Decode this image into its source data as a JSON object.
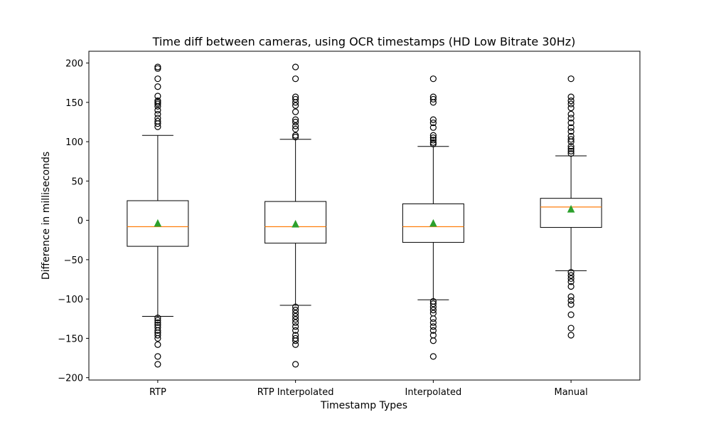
{
  "chart_data": {
    "type": "box",
    "title": "Time diff between cameras, using OCR timestamps (HD Low Bitrate 30Hz)",
    "xlabel": "Timestamp Types",
    "ylabel": "Difference in milliseconds",
    "ylim": [
      -203,
      215
    ],
    "yticks": [
      -200,
      -150,
      -100,
      -50,
      0,
      50,
      100,
      150,
      200
    ],
    "ytick_labels": [
      "−200",
      "−150",
      "−100",
      "−50",
      "0",
      "50",
      "100",
      "150",
      "200"
    ],
    "categories": [
      "RTP",
      "RTP Interpolated",
      "Interpolated",
      "Manual"
    ],
    "grid": false,
    "colors": {
      "box": "#000000",
      "median": "#ff7f0e",
      "mean": "#2ca02c",
      "flier": "#000000"
    },
    "series": [
      {
        "category": "RTP",
        "whisker_low": -122,
        "q1": -33,
        "median": -8,
        "q3": 25,
        "whisker_high": 108,
        "mean": -4,
        "fliers_high": [
          195,
          193,
          180,
          170,
          158,
          152,
          150,
          148,
          145,
          140,
          135,
          130,
          126,
          123,
          119
        ],
        "fliers_low": [
          -124,
          -127,
          -130,
          -133,
          -136,
          -140,
          -143,
          -146,
          -150,
          -158,
          -173,
          -183
        ]
      },
      {
        "category": "RTP Interpolated",
        "whisker_low": -108,
        "q1": -29,
        "median": -8,
        "q3": 24,
        "whisker_high": 103,
        "mean": -5,
        "fliers_high": [
          195,
          180,
          157,
          154,
          150,
          146,
          138,
          128,
          125,
          120,
          116,
          108,
          106
        ],
        "fliers_low": [
          -110,
          -114,
          -118,
          -122,
          -126,
          -130,
          -135,
          -140,
          -146,
          -150,
          -153,
          -158,
          -183
        ]
      },
      {
        "category": "Interpolated",
        "whisker_low": -101,
        "q1": -28,
        "median": -8,
        "q3": 21,
        "whisker_high": 94,
        "mean": -4,
        "fliers_high": [
          180,
          157,
          154,
          150,
          128,
          124,
          118,
          108,
          105,
          102,
          99,
          97
        ],
        "fliers_low": [
          -103,
          -106,
          -110,
          -114,
          -118,
          -125,
          -130,
          -135,
          -140,
          -146,
          -153,
          -173
        ]
      },
      {
        "category": "Manual",
        "whisker_low": -64,
        "q1": -9,
        "median": 17,
        "q3": 28,
        "whisker_high": 82,
        "mean": 14,
        "fliers_high": [
          180,
          157,
          152,
          148,
          143,
          135,
          130,
          124,
          118,
          113,
          107,
          103,
          100,
          94,
          91,
          88,
          85
        ],
        "fliers_low": [
          -66,
          -70,
          -74,
          -78,
          -84,
          -97,
          -102,
          -107,
          -120,
          -137,
          -146
        ]
      }
    ]
  }
}
